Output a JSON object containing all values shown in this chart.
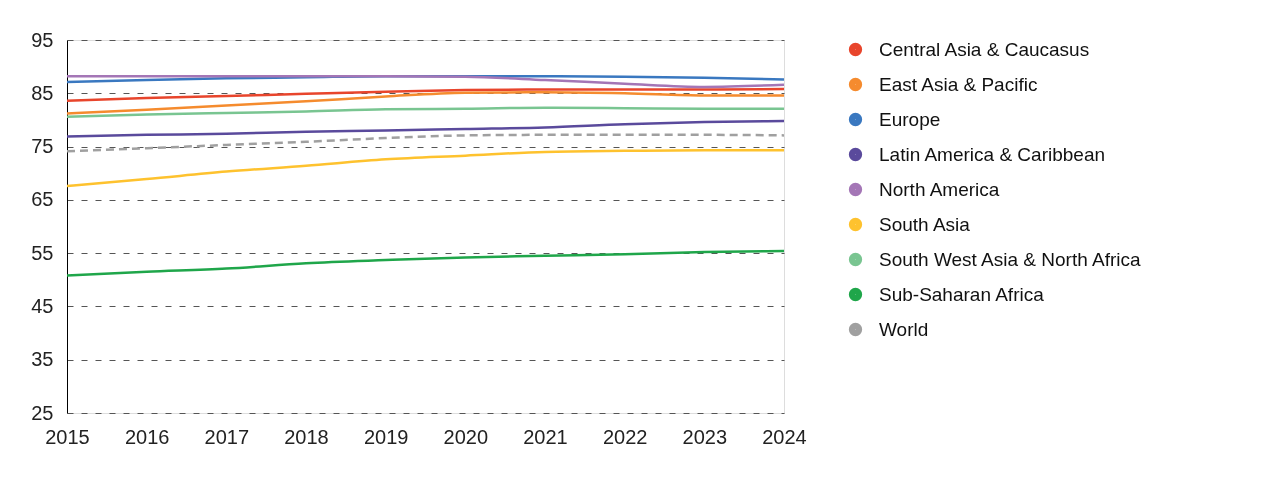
{
  "chart_data": {
    "type": "line",
    "x": [
      2015,
      2016,
      2017,
      2018,
      2019,
      2020,
      2021,
      2022,
      2023,
      2024
    ],
    "xlim": [
      2015,
      2024
    ],
    "xticks": [
      2015,
      2016,
      2017,
      2018,
      2019,
      2020,
      2021,
      2022,
      2023,
      2024
    ],
    "ylim": [
      25,
      95
    ],
    "yticks": [
      25,
      35,
      45,
      55,
      65,
      75,
      85,
      95
    ],
    "grid": "y",
    "legend": "right",
    "marker": "none",
    "series": [
      {
        "name": "Central Asia & Caucasus",
        "color": "#e8452c",
        "line_style": "solid",
        "values": [
          83.6,
          84.1,
          84.5,
          84.9,
          85.3,
          85.6,
          85.7,
          85.7,
          85.7,
          85.8
        ]
      },
      {
        "name": "East Asia & Pacific",
        "color": "#f58b2e",
        "line_style": "solid",
        "values": [
          81.2,
          81.9,
          82.7,
          83.5,
          84.4,
          85.1,
          85.2,
          85.0,
          84.6,
          84.6
        ]
      },
      {
        "name": "Europe",
        "color": "#3a78c0",
        "line_style": "solid",
        "values": [
          87.1,
          87.5,
          87.8,
          88.0,
          88.2,
          88.2,
          88.2,
          88.1,
          87.9,
          87.6
        ]
      },
      {
        "name": "Latin America & Caribbean",
        "color": "#5a4a9c",
        "line_style": "solid",
        "values": [
          76.9,
          77.2,
          77.4,
          77.8,
          78.0,
          78.3,
          78.6,
          79.2,
          79.6,
          79.8
        ]
      },
      {
        "name": "North America",
        "color": "#a476b6",
        "line_style": "solid",
        "values": [
          88.2,
          88.2,
          88.2,
          88.2,
          88.2,
          88.1,
          87.5,
          86.8,
          86.2,
          86.6
        ]
      },
      {
        "name": "South Asia",
        "color": "#fec22e",
        "line_style": "solid",
        "values": [
          67.6,
          68.9,
          70.3,
          71.4,
          72.6,
          73.3,
          74.0,
          74.2,
          74.3,
          74.3
        ]
      },
      {
        "name": "South West Asia & North Africa",
        "color": "#79c591",
        "line_style": "solid",
        "values": [
          80.6,
          81.0,
          81.3,
          81.6,
          82.0,
          82.1,
          82.3,
          82.2,
          82.1,
          82.1
        ]
      },
      {
        "name": "Sub-Saharan Africa",
        "color": "#1fa64a",
        "line_style": "solid",
        "values": [
          50.8,
          51.5,
          52.1,
          53.1,
          53.7,
          54.2,
          54.5,
          54.8,
          55.2,
          55.4
        ]
      },
      {
        "name": "World",
        "color": "#a0a0a0",
        "line_style": "dashed",
        "values": [
          74.1,
          74.7,
          75.3,
          75.9,
          76.6,
          77.1,
          77.2,
          77.2,
          77.2,
          77.1
        ]
      }
    ]
  }
}
